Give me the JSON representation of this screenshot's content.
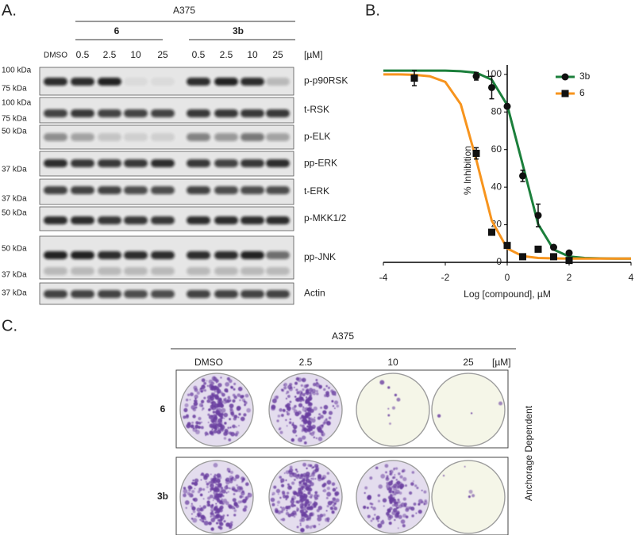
{
  "panel_a": {
    "label": "A.",
    "cell_line": "A375",
    "groups": [
      "6",
      "3b"
    ],
    "lanes": [
      "DMSO",
      "0.5",
      "2.5",
      "10",
      "25",
      "0.5",
      "2.5",
      "10",
      "25"
    ],
    "unit": "[µM]",
    "blots": [
      {
        "name": "p-p90RSK",
        "markers": [
          "100 kDa",
          "75 kDa"
        ]
      },
      {
        "name": "t-RSK",
        "markers": [
          "100 kDa",
          "75 kDa"
        ]
      },
      {
        "name": "p-ELK",
        "markers": [
          "50 kDa"
        ]
      },
      {
        "name": "pp-ERK",
        "markers": [
          "37 kDa"
        ]
      },
      {
        "name": "t-ERK",
        "markers": [
          "37 kDa"
        ]
      },
      {
        "name": "p-MKK1/2",
        "markers": [
          "50 kDa"
        ]
      },
      {
        "name": "pp-JNK",
        "markers": [
          "50 kDa",
          "37 kDa"
        ]
      },
      {
        "name": "Actin",
        "markers": [
          "37 kDa"
        ]
      }
    ]
  },
  "chart_data": {
    "type": "scatter",
    "title": "B.",
    "x_label": "Log [compound], µM",
    "y_label": "% Inhibition",
    "xlim": [
      -4,
      4
    ],
    "ylim": [
      0,
      105
    ],
    "xticks": [
      -4,
      -2,
      0,
      2,
      4
    ],
    "yticks": [
      0,
      20,
      40,
      60,
      80,
      100
    ],
    "legend": "upper right",
    "series": [
      {
        "name": "3b",
        "color": "#1b7f3b",
        "marker": "circle",
        "x": [
          -1,
          -0.5,
          0,
          0.5,
          1,
          1.5,
          2
        ],
        "values": [
          99,
          93,
          83,
          46,
          25,
          8,
          5
        ],
        "errors": [
          2,
          6,
          1,
          3,
          6,
          1,
          1
        ],
        "curve": {
          "x": [
            -4,
            -3.5,
            -3,
            -2.5,
            -2,
            -1.5,
            -1,
            -0.5,
            0,
            0.5,
            1,
            1.5,
            2,
            2.5,
            3,
            3.5,
            4
          ],
          "values": [
            102,
            102,
            102,
            102,
            102,
            101.7,
            100.9,
            97.2,
            83.7,
            52,
            20.3,
            6.8,
            3.1,
            2.3,
            2.1,
            2,
            2
          ]
        }
      },
      {
        "name": "6",
        "color": "#f7941d",
        "marker": "square",
        "x": [
          -3,
          -1,
          -0.5,
          0,
          0.5,
          1,
          1.5,
          2
        ],
        "values": [
          98,
          58,
          16,
          9,
          3,
          7,
          3,
          1
        ],
        "errors": [
          4,
          3,
          1,
          1,
          1,
          1,
          1,
          1
        ],
        "curve": {
          "x": [
            -4,
            -3.5,
            -3,
            -2.5,
            -2,
            -1.5,
            -1,
            -0.5,
            0,
            0.5,
            1,
            1.5,
            2,
            2.5,
            3,
            3.5,
            4
          ],
          "values": [
            100,
            100,
            99.8,
            99,
            96,
            84.1,
            54.7,
            22.2,
            7.4,
            3.3,
            2.3,
            2.1,
            2,
            2,
            2,
            2,
            2
          ]
        }
      }
    ]
  },
  "panel_c": {
    "label": "C.",
    "cell_line": "A375",
    "columns": [
      "DMSO",
      "2.5",
      "10",
      "25"
    ],
    "unit": "[µM]",
    "rows": [
      "6",
      "3b"
    ],
    "side_label": "Anchorage Dependent"
  }
}
